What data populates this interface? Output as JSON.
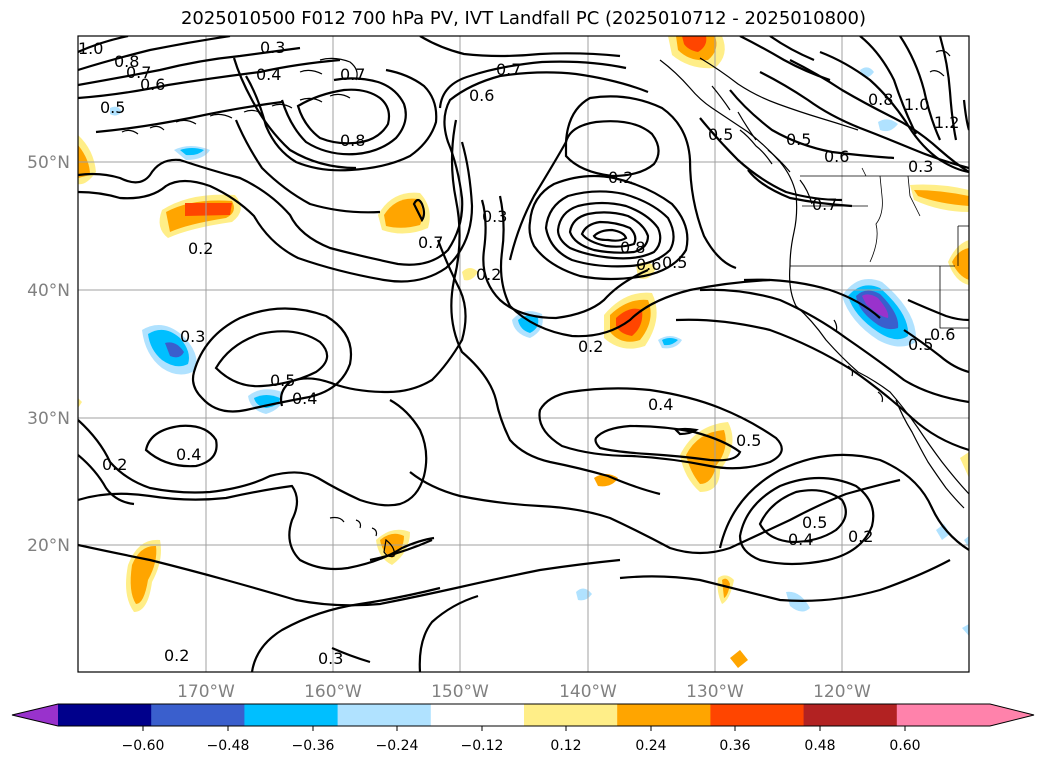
{
  "title": "2025010500 F012 700 hPa PV, IVT Landfall PC (2025010712 - 2025010800)",
  "map": {
    "lat_labels": [
      "50°N",
      "40°N",
      "30°N",
      "20°N"
    ],
    "lon_labels": [
      "170°W",
      "160°W",
      "150°W",
      "140°W",
      "130°W",
      "120°W"
    ],
    "contour_labels": [
      "1.0",
      "0.8",
      "0.3",
      "0.7",
      "0.6",
      "0.4",
      "0.5",
      "0.7",
      "0.6",
      "0.8",
      "0.5",
      "0.8",
      "1.0",
      "1.2",
      "0.6",
      "0.7",
      "0.5",
      "0.2",
      "0.3",
      "0.7",
      "0.8",
      "0.6",
      "0.5",
      "0.2",
      "0.7",
      "0.3",
      "0.2",
      "0.3",
      "0.5",
      "0.4",
      "0.6",
      "0.5",
      "0.4",
      "0.4",
      "0.5",
      "0.2",
      "0.5",
      "0.4",
      "0.2",
      "0.2",
      "0.3",
      "0.2"
    ],
    "colors": {
      "negative": [
        "#9932cc",
        "#00008b",
        "#3a5fcd",
        "#00bfff",
        "#b0e2ff"
      ],
      "positive": [
        "#fff68f",
        "#ffa500",
        "#ff4500",
        "#b22222",
        "#ff82ab"
      ]
    }
  },
  "colorbar": {
    "ticks": [
      "−0.60",
      "−0.48",
      "−0.36",
      "−0.24",
      "−0.12",
      "0.12",
      "0.24",
      "0.36",
      "0.48",
      "0.60"
    ],
    "colors": [
      "#9932cc",
      "#00008b",
      "#3a5fcd",
      "#00bfff",
      "#b0e2ff",
      "#ffffff",
      "#ffee88",
      "#ffa500",
      "#ff4500",
      "#b22222",
      "#ff82ab",
      "#ff82ab"
    ]
  }
}
